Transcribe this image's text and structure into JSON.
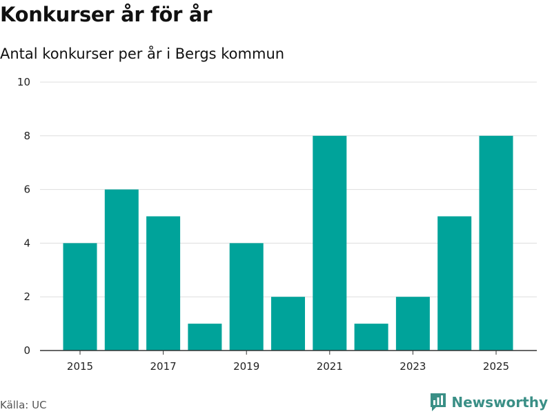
{
  "header": {
    "title": "Konkurser år för år",
    "subtitle": "Antal konkurser per år i Bergs kommun"
  },
  "footer": {
    "source": "Källa: UC",
    "brand": "Newsworthy"
  },
  "colors": {
    "bar": "#00a39a",
    "grid": "#dddddd",
    "axis": "#333333",
    "brand": "#3a8f86"
  },
  "chart_data": {
    "type": "bar",
    "title": "Konkurser år för år",
    "subtitle": "Antal konkurser per år i Bergs kommun",
    "xlabel": "",
    "ylabel": "",
    "categories": [
      "2015",
      "2016",
      "2017",
      "2018",
      "2019",
      "2020",
      "2021",
      "2022",
      "2023",
      "2024",
      "2025"
    ],
    "values": [
      4,
      6,
      5,
      1,
      4,
      2,
      8,
      1,
      2,
      5,
      8
    ],
    "x_tick_labels": [
      "2015",
      "2017",
      "2019",
      "2021",
      "2023",
      "2025"
    ],
    "y_ticks": [
      0,
      2,
      4,
      6,
      8,
      10
    ],
    "ylim": [
      0,
      10
    ],
    "grid": true
  }
}
